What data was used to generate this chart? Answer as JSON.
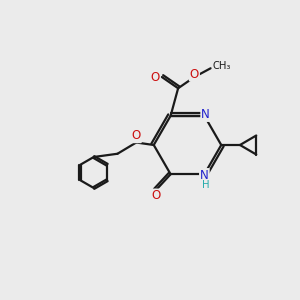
{
  "bg": "#ebebeb",
  "bc": "#1a1a1a",
  "nc": "#2121cc",
  "oc": "#cc1111",
  "hc": "#22aaaa",
  "lw": 1.6,
  "fs": 8.5,
  "fss": 7.2,
  "figsize": [
    3.0,
    3.0
  ],
  "dpi": 100,
  "xlim": [
    -1,
    11
  ],
  "ylim": [
    -1,
    11
  ]
}
